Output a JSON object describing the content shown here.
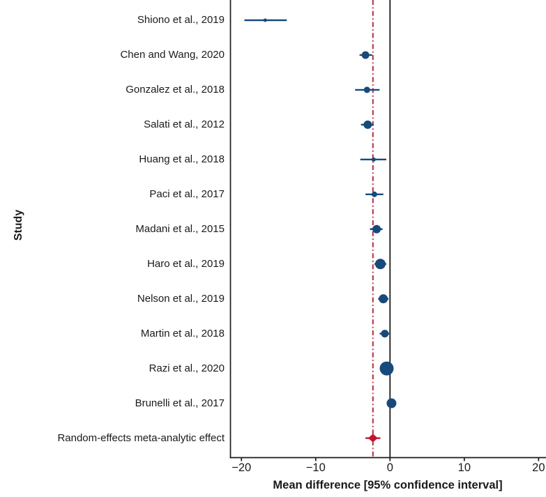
{
  "figure": {
    "y_axis_label": "Study",
    "x_axis_label": "Mean difference [95% confidence interval]"
  },
  "chart_data": {
    "type": "scatter",
    "subtype": "forest-plot",
    "title": "",
    "xlabel": "Mean difference [95% confidence interval]",
    "ylabel": "Study",
    "xlim": [
      -21.5,
      21
    ],
    "x_ticks": [
      -20,
      -10,
      0,
      10,
      20
    ],
    "grid": false,
    "legend": false,
    "colors": {
      "study_marker": "#164A7D",
      "summary_marker": "#C8102E",
      "axis": "#1a1a1a",
      "zero_line": "#1a1a1a",
      "reference_line": "#C8102E"
    },
    "reference_lines": [
      {
        "x": 0,
        "style": "solid",
        "color": "#1a1a1a"
      },
      {
        "x": -2.3,
        "style": "dash-dot",
        "color": "#C8102E"
      }
    ],
    "studies": [
      {
        "label": "Shiono et al., 2019",
        "mean": -16.8,
        "ci_low": -19.6,
        "ci_high": -13.9,
        "marker": "circle",
        "marker_radius": 2.5
      },
      {
        "label": "Chen and Wang, 2020",
        "mean": -3.3,
        "ci_low": -4.1,
        "ci_high": -2.4,
        "marker": "circle",
        "marker_radius": 5.5
      },
      {
        "label": "Gonzalez et al., 2018",
        "mean": -3.1,
        "ci_low": -4.7,
        "ci_high": -1.4,
        "marker": "circle",
        "marker_radius": 4.5
      },
      {
        "label": "Salati et al., 2012",
        "mean": -3.0,
        "ci_low": -3.9,
        "ci_high": -2.2,
        "marker": "circle",
        "marker_radius": 6
      },
      {
        "label": "Huang et al., 2018",
        "mean": -2.2,
        "ci_low": -4.0,
        "ci_high": -0.5,
        "marker": "circle",
        "marker_radius": 3
      },
      {
        "label": "Paci et al., 2017",
        "mean": -2.1,
        "ci_low": -3.3,
        "ci_high": -0.9,
        "marker": "circle",
        "marker_radius": 4
      },
      {
        "label": "Madani et al., 2015",
        "mean": -1.8,
        "ci_low": -2.7,
        "ci_high": -1.0,
        "marker": "circle",
        "marker_radius": 6
      },
      {
        "label": "Haro et al., 2019",
        "mean": -1.3,
        "ci_low": -2.1,
        "ci_high": -0.5,
        "marker": "circle",
        "marker_radius": 7.5
      },
      {
        "label": "Nelson et al., 2019",
        "mean": -0.9,
        "ci_low": -1.6,
        "ci_high": -0.2,
        "marker": "circle",
        "marker_radius": 6.5
      },
      {
        "label": "Martin et al., 2018",
        "mean": -0.7,
        "ci_low": -1.4,
        "ci_high": -0.1,
        "marker": "circle",
        "marker_radius": 5.5
      },
      {
        "label": "Razi et al., 2020",
        "mean": -0.45,
        "ci_low": -1.0,
        "ci_high": 0.1,
        "marker": "circle",
        "marker_radius": 10
      },
      {
        "label": "Brunelli et al., 2017",
        "mean": 0.2,
        "ci_low": -0.4,
        "ci_high": 0.8,
        "marker": "circle",
        "marker_radius": 7
      },
      {
        "label": "Random-effects meta-analytic effect",
        "mean": -2.3,
        "ci_low": -3.3,
        "ci_high": -1.3,
        "marker": "diamond",
        "marker_radius": 7
      }
    ]
  }
}
